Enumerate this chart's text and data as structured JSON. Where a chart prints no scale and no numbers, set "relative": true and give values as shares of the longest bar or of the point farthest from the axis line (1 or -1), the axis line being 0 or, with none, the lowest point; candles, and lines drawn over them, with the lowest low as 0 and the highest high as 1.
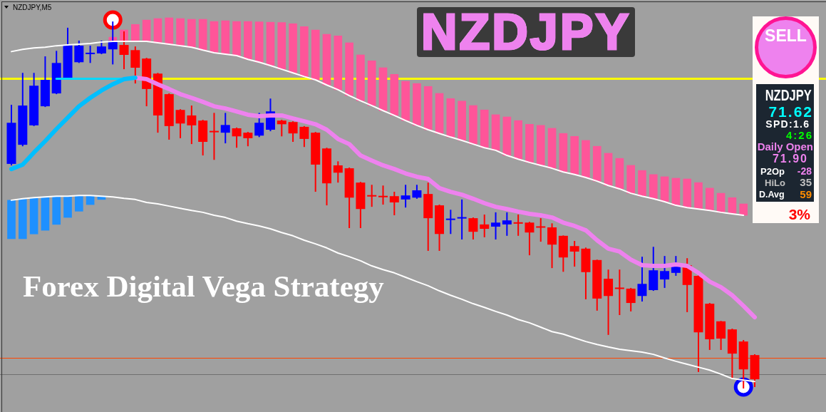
{
  "chart_data": [
    {
      "type": "candlestick",
      "title": "NZDJPY",
      "annotations": [
        "NZDJPY,M5",
        "Forex Digital Vega Strategy"
      ],
      "relative": true,
      "tick_labels": false,
      "categories": [
        null,
        null,
        null,
        null,
        null,
        null,
        null,
        null,
        null,
        null,
        null,
        null,
        null,
        null,
        null,
        null,
        null,
        null,
        null,
        null,
        null,
        null,
        null,
        null,
        null,
        null,
        null,
        null,
        null,
        null,
        null,
        null,
        null,
        null,
        null,
        null,
        null,
        null,
        null,
        null,
        null,
        null,
        null,
        null,
        null,
        null,
        null,
        null,
        null,
        null,
        null,
        null,
        null,
        null,
        null,
        null,
        null,
        null,
        null,
        null,
        null,
        null,
        null,
        null,
        null,
        null,
        null
      ],
      "ohlc": [
        [
          0.612,
          0.773,
          0.608,
          0.724
        ],
        [
          0.664,
          0.86,
          0.66,
          0.771
        ],
        [
          0.717,
          0.86,
          0.715,
          0.825
        ],
        [
          0.769,
          0.905,
          0.767,
          0.841
        ],
        [
          0.804,
          0.92,
          0.802,
          0.887
        ],
        [
          0.845,
          0.983,
          0.843,
          0.936
        ],
        [
          0.889,
          0.948,
          0.887,
          0.934
        ],
        [
          0.911,
          0.934,
          0.887,
          0.915
        ],
        [
          0.913,
          0.948,
          0.911,
          0.932
        ],
        [
          0.924,
          1,
          0.883,
          0.948
        ],
        [
          0.936,
          0.973,
          0.87,
          0.909
        ],
        [
          0.922,
          0.932,
          0.831,
          0.874
        ],
        [
          0.899,
          0.901,
          0.769,
          0.816
        ],
        [
          0.858,
          0.86,
          0.697,
          0.744
        ],
        [
          0.802,
          0.804,
          0.678,
          0.715
        ],
        [
          0.759,
          0.761,
          0.682,
          0.722
        ],
        [
          0.744,
          0.771,
          0.666,
          0.717
        ],
        [
          0.73,
          0.732,
          0.635,
          0.672
        ],
        [
          0.701,
          0.751,
          0.623,
          0.699
        ],
        [
          0.697,
          0.751,
          0.668,
          0.718
        ],
        [
          0.709,
          0.711,
          0.656,
          0.687
        ],
        [
          0.697,
          0.699,
          0.66,
          0.682
        ],
        [
          0.689,
          0.751,
          0.685,
          0.724
        ],
        [
          0.705,
          0.79,
          0.701,
          0.755
        ],
        [
          0.73,
          0.732,
          0.687,
          0.72
        ],
        [
          0.726,
          0.728,
          0.672,
          0.695
        ],
        [
          0.713,
          0.715,
          0.658,
          0.68
        ],
        [
          0.697,
          0.699,
          0.536,
          0.61
        ],
        [
          0.654,
          0.656,
          0.499,
          0.559
        ],
        [
          0.608,
          0.619,
          0.561,
          0.588
        ],
        [
          0.6,
          0.602,
          0.437,
          0.52
        ],
        [
          0.561,
          0.563,
          0.437,
          0.489
        ],
        [
          0.526,
          0.555,
          0.495,
          0.524
        ],
        [
          0.524,
          0.553,
          0.501,
          0.522
        ],
        [
          0.524,
          0.536,
          0.472,
          0.507
        ],
        [
          0.515,
          0.555,
          0.493,
          0.526
        ],
        [
          0.52,
          0.555,
          0.517,
          0.54
        ],
        [
          0.53,
          0.561,
          0.375,
          0.464
        ],
        [
          0.499,
          0.501,
          0.375,
          0.421
        ],
        [
          0.46,
          0.487,
          0.421,
          0.462
        ],
        [
          0.464,
          0.515,
          0.406,
          0.466
        ],
        [
          0.464,
          0.466,
          0.406,
          0.427
        ],
        [
          0.447,
          0.474,
          0.412,
          0.435
        ],
        [
          0.441,
          0.48,
          0.406,
          0.452
        ],
        [
          0.447,
          0.48,
          0.416,
          0.458
        ],
        [
          0.452,
          0.474,
          0.416,
          0.45
        ],
        [
          0.452,
          0.454,
          0.363,
          0.425
        ],
        [
          0.441,
          0.464,
          0.4,
          0.439
        ],
        [
          0.439,
          0.45,
          0.328,
          0.392
        ],
        [
          0.416,
          0.417,
          0.318,
          0.357
        ],
        [
          0.388,
          0.402,
          0.332,
          0.373
        ],
        [
          0.381,
          0.384,
          0.243,
          0.317
        ],
        [
          0.35,
          0.351,
          0.212,
          0.245
        ],
        [
          0.299,
          0.324,
          0.146,
          0.252
        ],
        [
          0.274,
          0.324,
          0.2,
          0.272
        ],
        [
          0.272,
          0.274,
          0.21,
          0.233
        ],
        [
          0.252,
          0.359,
          0.237,
          0.285
        ],
        [
          0.268,
          0.386,
          0.266,
          0.322
        ],
        [
          0.297,
          0.361,
          0.274,
          0.32
        ],
        [
          0.315,
          0.361,
          0.307,
          0.338
        ],
        [
          0.336,
          0.355,
          0.208,
          0.282
        ],
        [
          0.307,
          0.309,
          0.045,
          0.153
        ],
        [
          0.231,
          0.233,
          0.105,
          0.134
        ],
        [
          0.183,
          0.184,
          0.105,
          0.136
        ],
        [
          0.161,
          0.163,
          0.029,
          0.095
        ],
        [
          0.128,
          0.132,
          0,
          0.052
        ],
        [
          0.091,
          0.093,
          0.004,
          0.025
        ]
      ],
      "colors": [
        "#0000ff",
        "#0000ff",
        "#0000ff",
        "#0000ff",
        "#0000ff",
        "#0000ff",
        "#0000ff",
        "#0000ff",
        "#0000ff",
        "#0000ff",
        "#ff0000",
        "#ff0000",
        "#ff0000",
        "#ff0000",
        "#ff0000",
        "#ff0000",
        "#ff0000",
        "#ff0000",
        "#ff0000",
        "#0000ff",
        "#ff0000",
        "#ff0000",
        "#0000ff",
        "#0000ff",
        "#ff0000",
        "#ff0000",
        "#ff0000",
        "#ff0000",
        "#ff0000",
        "#ff0000",
        "#ff0000",
        "#ff0000",
        "#ff0000",
        "#ff0000",
        "#ff0000",
        "#0000ff",
        "#0000ff",
        "#ff0000",
        "#ff0000",
        "#0000ff",
        "#0000ff",
        "#ff0000",
        "#ff0000",
        "#0000ff",
        "#0000ff",
        "#ff0000",
        "#ff0000",
        "#ff0000",
        "#ff0000",
        "#ff0000",
        "#ff0000",
        "#ff0000",
        "#ff0000",
        "#ff0000",
        "#ff0000",
        "#ff0000",
        "#0000ff",
        "#0000ff",
        "#0000ff",
        "#0000ff",
        "#ff0000",
        "#ff0000",
        "#ff0000",
        "#ff0000",
        "#ff0000",
        "#ff0000",
        "#ff0000"
      ],
      "series": [
        {
          "type": "bar",
          "color": "#ff5599",
          "base": [
            null,
            null,
            null,
            null,
            null,
            null,
            null,
            null,
            null,
            0.946,
            0.946,
            0.946,
            0.946,
            0.942,
            0.938,
            0.934,
            0.93,
            0.922,
            0.915,
            0.911,
            0.907,
            0.897,
            0.889,
            0.88,
            0.87,
            0.86,
            0.85,
            0.841,
            0.827,
            0.814,
            0.798,
            0.784,
            0.771,
            0.757,
            0.744,
            0.73,
            0.717,
            0.705,
            0.695,
            0.685,
            0.676,
            0.666,
            0.656,
            0.649,
            0.635,
            0.625,
            0.616,
            0.608,
            0.6,
            0.59,
            0.583,
            0.575,
            0.565,
            0.553,
            0.544,
            0.532,
            0.524,
            0.517,
            0.509,
            0.499,
            0.493,
            0.489,
            0.485,
            0.48,
            0.476,
            0.472,
            null
          ],
          "values": [
            null,
            null,
            null,
            null,
            null,
            null,
            null,
            null,
            null,
            0.011,
            0.031,
            0.046,
            0.058,
            0.066,
            0.072,
            0.074,
            0.076,
            0.084,
            0.085,
            0.091,
            0.093,
            0.103,
            0.11,
            0.118,
            0.127,
            0.134,
            0.136,
            0.136,
            0.138,
            0.147,
            0.144,
            0.125,
            0.122,
            0.117,
            0.112,
            0.107,
            0.114,
            0.118,
            0.109,
            0.105,
            0.107,
            0.105,
            0.103,
            0.097,
            0.105,
            0.105,
            0.104,
            0.109,
            0.109,
            0.105,
            0.104,
            0.101,
            0.095,
            0.088,
            0.083,
            0.076,
            0.07,
            0.066,
            0.068,
            0.074,
            0.078,
            0.072,
            0.061,
            0.052,
            0.044,
            0.031,
            null
          ]
        },
        {
          "type": "bar",
          "color": "#1e90ff",
          "base": [
            0.513,
            0.517,
            0.52,
            0.522,
            0.524,
            0.524,
            0.526,
            0.526,
            0.524,
            null,
            null,
            null,
            null,
            null,
            null,
            null,
            null,
            null,
            null,
            null,
            null,
            null,
            null,
            null,
            null,
            null,
            null,
            null,
            null,
            null,
            null,
            null,
            null,
            null,
            null,
            null,
            null,
            null,
            null,
            null,
            null,
            null,
            null,
            null,
            null,
            null,
            null,
            null,
            null,
            null,
            null,
            null,
            null,
            null,
            null,
            null,
            null,
            null,
            null,
            null,
            null,
            null,
            null,
            null,
            null,
            null,
            null
          ],
          "values": [
            -0.105,
            -0.109,
            -0.099,
            -0.091,
            -0.077,
            -0.058,
            -0.043,
            -0.025,
            -0.009,
            null,
            null,
            null,
            null,
            null,
            null,
            null,
            null,
            null,
            null,
            null,
            null,
            null,
            null,
            null,
            null,
            null,
            null,
            null,
            null,
            null,
            null,
            null,
            null,
            null,
            null,
            null,
            null,
            null,
            null,
            null,
            null,
            null,
            null,
            null,
            null,
            null,
            null,
            null,
            null,
            null,
            null,
            null,
            null,
            null,
            null,
            null,
            null,
            null,
            null,
            null,
            null,
            null,
            null,
            null,
            null,
            null,
            null
          ]
        },
        {
          "type": "line",
          "color": "#ffffff",
          "values": [
            0.918,
            0.924,
            0.928,
            0.93,
            0.934,
            0.936,
            0.938,
            0.94,
            0.944,
            0.946,
            0.946,
            0.946,
            0.946,
            0.942,
            0.938,
            0.934,
            0.93,
            0.922,
            0.915,
            0.911,
            0.907,
            0.897,
            0.889,
            0.88,
            0.87,
            0.86,
            0.85,
            0.841,
            0.827,
            0.814,
            0.798,
            0.784,
            0.771,
            0.757,
            0.744,
            0.73,
            0.717,
            0.705,
            0.695,
            0.685,
            0.676,
            0.666,
            0.656,
            0.649,
            0.635,
            0.625,
            0.616,
            0.608,
            0.6,
            0.59,
            0.583,
            0.575,
            0.565,
            0.553,
            0.544,
            0.532,
            0.524,
            0.517,
            0.509,
            0.499,
            0.493,
            0.489,
            0.485,
            0.48,
            0.476,
            0.472,
            null
          ]
        },
        {
          "type": "line",
          "color": "#ffffff",
          "values": [
            0.513,
            0.517,
            0.52,
            0.522,
            0.524,
            0.524,
            0.526,
            0.526,
            0.524,
            0.522,
            0.518,
            0.515,
            0.507,
            0.503,
            0.497,
            0.491,
            0.485,
            0.48,
            0.472,
            0.466,
            0.456,
            0.449,
            0.443,
            0.435,
            0.425,
            0.416,
            0.404,
            0.394,
            0.383,
            0.369,
            0.359,
            0.348,
            0.334,
            0.324,
            0.315,
            0.303,
            0.291,
            0.28,
            0.266,
            0.254,
            0.243,
            0.231,
            0.221,
            0.21,
            0.2,
            0.188,
            0.179,
            0.167,
            0.155,
            0.148,
            0.138,
            0.128,
            0.12,
            0.113,
            0.107,
            0.103,
            0.099,
            0.093,
            0.083,
            0.074,
            0.066,
            0.058,
            0.05,
            0.039,
            0.027,
            0.023,
            0.019
          ]
        },
        {
          "type": "line",
          "color": "#00bfff",
          "values": [
            0.598,
            0.61,
            0.643,
            0.674,
            0.707,
            0.738,
            0.769,
            0.792,
            0.812,
            0.829,
            0.843,
            0.847,
            null,
            null,
            null,
            null,
            null,
            null,
            null,
            null,
            null,
            null,
            null,
            null,
            null,
            null,
            null,
            null,
            null,
            null,
            null,
            null,
            null,
            null,
            null,
            null,
            null,
            null,
            null,
            null,
            null,
            null,
            null,
            null,
            null,
            null,
            null,
            null,
            null,
            null,
            null,
            null,
            null,
            null,
            null,
            null,
            null,
            null,
            null,
            null,
            null,
            null,
            null,
            null,
            null,
            null,
            null
          ]
        },
        {
          "type": "line",
          "color": "#ee82ee",
          "values": [
            null,
            null,
            null,
            null,
            null,
            null,
            null,
            null,
            null,
            null,
            null,
            0.847,
            0.843,
            0.829,
            0.816,
            0.802,
            0.792,
            0.781,
            0.769,
            0.763,
            0.755,
            0.746,
            0.742,
            0.744,
            0.744,
            0.736,
            0.728,
            0.72,
            0.705,
            0.68,
            0.666,
            0.635,
            0.621,
            0.608,
            0.598,
            0.586,
            0.577,
            0.571,
            0.546,
            0.536,
            0.528,
            0.517,
            0.505,
            0.495,
            0.489,
            0.482,
            0.476,
            0.472,
            0.466,
            0.452,
            0.443,
            0.431,
            0.404,
            0.381,
            0.373,
            0.351,
            0.336,
            0.334,
            0.334,
            0.338,
            0.334,
            0.315,
            0.291,
            0.276,
            0.254,
            0.225,
            0.194
          ]
        },
        {
          "type": "line",
          "color": "#00d8ff",
          "values": [
            null,
            null,
            null,
            null,
            0.844,
            0.844,
            0.844,
            0.844,
            0.844,
            0.844,
            0.844,
            null,
            null,
            null,
            null,
            null,
            null,
            null,
            null,
            null,
            null,
            null,
            null,
            null,
            null,
            null,
            null,
            null,
            null,
            null,
            null,
            null,
            null,
            null,
            null,
            null,
            null,
            null,
            null,
            null,
            null,
            null,
            null,
            null,
            null,
            null,
            null,
            null,
            null,
            null,
            null,
            null,
            null,
            null,
            null,
            null,
            null,
            null,
            null,
            null,
            null,
            null,
            null,
            null,
            null,
            null,
            null
          ]
        },
        {
          "type": "scatter",
          "color": "#ff0000",
          "marker": "circle",
          "values": [
            null,
            null,
            null,
            null,
            null,
            null,
            null,
            null,
            null,
            1.004,
            null,
            null,
            null,
            null,
            null,
            null,
            null,
            null,
            null,
            null,
            null,
            null,
            null,
            null,
            null,
            null,
            null,
            null,
            null,
            null,
            null,
            null,
            null,
            null,
            null,
            null,
            null,
            null,
            null,
            null,
            null,
            null,
            null,
            null,
            null,
            null,
            null,
            null,
            null,
            null,
            null,
            null,
            null,
            null,
            null,
            null,
            null,
            null,
            null,
            null,
            null,
            null,
            null,
            null,
            null,
            null,
            null
          ]
        },
        {
          "type": "scatter",
          "color": "#0000ff",
          "marker": "circle",
          "values": [
            null,
            null,
            null,
            null,
            null,
            null,
            null,
            null,
            null,
            null,
            null,
            null,
            null,
            null,
            null,
            null,
            null,
            null,
            null,
            null,
            null,
            null,
            null,
            null,
            null,
            null,
            null,
            null,
            null,
            null,
            null,
            null,
            null,
            null,
            null,
            null,
            null,
            null,
            null,
            null,
            null,
            null,
            null,
            null,
            null,
            null,
            null,
            null,
            null,
            null,
            null,
            null,
            null,
            null,
            null,
            null,
            null,
            null,
            null,
            null,
            null,
            null,
            null,
            null,
            null,
            0.004,
            null
          ]
        }
      ],
      "ref_lines": [
        {
          "axis": "y",
          "value": 0.844,
          "color": "#ffff00"
        },
        {
          "axis": "y",
          "value": 0.083,
          "color": "#ff4500"
        },
        {
          "axis": "y",
          "value": 0.038,
          "color": "#707070"
        }
      ]
    },
    {
      "type": "other",
      "annotations": [
        "SELL",
        "NZDJPY",
        "71.62",
        "SPD:1.6",
        "4:26",
        "Daily Open",
        "71.90",
        "P2Op",
        "-28",
        "HiLo",
        "35",
        "D.Avg",
        "59",
        "3%"
      ]
    }
  ]
}
